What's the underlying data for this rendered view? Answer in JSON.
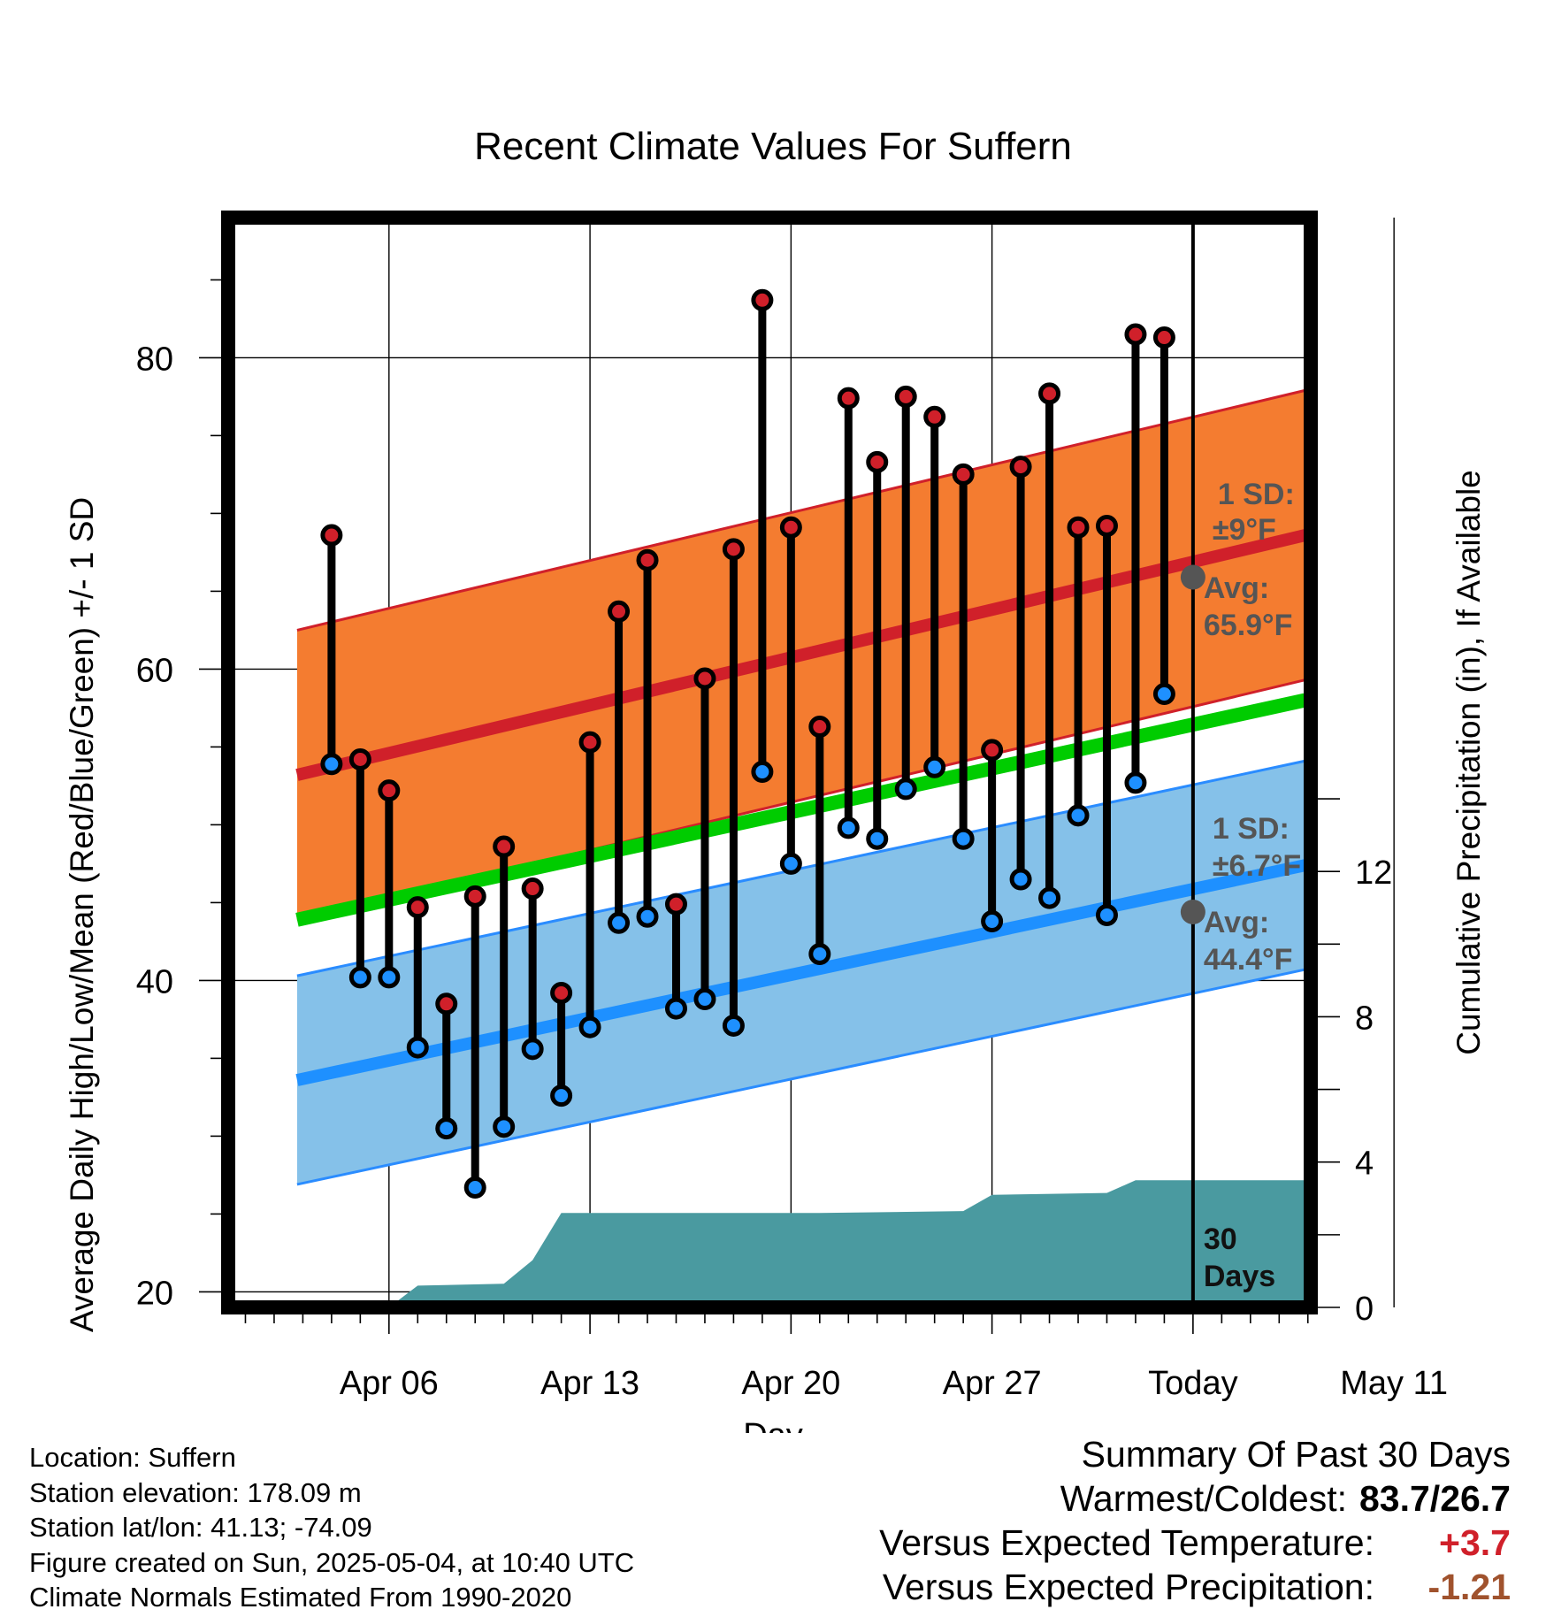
{
  "chart_data": {
    "type": "line",
    "title": "Recent Climate Values For Suffern",
    "xlabel": "Day",
    "ylabel": "Average Daily High/Low/Mean (Red/Blue/Green) +/- 1 SD",
    "y2label": "Cumulative Precipitation (in), If Available",
    "ylim": [
      19,
      89
    ],
    "y2lim": [
      0,
      30
    ],
    "y_ticks": [
      20,
      40,
      60,
      80
    ],
    "y2_ticks": [
      0,
      4,
      8,
      12
    ],
    "x_range_days": [
      -33.6,
      4.1
    ],
    "x_ticks": [
      {
        "day": -28,
        "label": "Apr 06"
      },
      {
        "day": -21,
        "label": "Apr 13"
      },
      {
        "day": -14,
        "label": "Apr 20"
      },
      {
        "day": -7,
        "label": "Apr 27"
      },
      {
        "day": 0,
        "label": "Today"
      },
      {
        "day": 7,
        "label": "May 11"
      }
    ],
    "grid": true,
    "series": [
      {
        "name": "High",
        "color": "#d0202a",
        "days": [
          -30,
          -29,
          -28,
          -27,
          -26,
          -25,
          -24,
          -23,
          -22,
          -21,
          -20,
          -19,
          -18,
          -17,
          -16,
          -15,
          -14,
          -13,
          -12,
          -11,
          -10,
          -9,
          -8,
          -7,
          -6,
          -5,
          -4,
          -3,
          -2,
          -1
        ],
        "values": [
          68.6,
          54.2,
          52.2,
          44.7,
          38.5,
          45.4,
          48.6,
          45.9,
          39.2,
          55.3,
          63.7,
          67.0,
          44.9,
          59.4,
          67.7,
          83.7,
          69.1,
          56.3,
          77.4,
          73.3,
          77.5,
          76.2,
          72.5,
          54.8,
          73.0,
          77.7,
          69.1,
          69.2,
          81.5,
          81.3
        ]
      },
      {
        "name": "Low",
        "color": "#1e90ff",
        "days": [
          -30,
          -29,
          -28,
          -27,
          -26,
          -25,
          -24,
          -23,
          -22,
          -21,
          -20,
          -19,
          -18,
          -17,
          -16,
          -15,
          -14,
          -13,
          -12,
          -11,
          -10,
          -9,
          -8,
          -7,
          -6,
          -5,
          -4,
          -3,
          -2,
          -1
        ],
        "values": [
          53.9,
          40.2,
          40.2,
          35.7,
          30.5,
          26.7,
          30.6,
          35.6,
          32.6,
          37.0,
          43.7,
          44.1,
          38.2,
          38.8,
          37.1,
          53.4,
          47.5,
          41.7,
          49.8,
          49.1,
          52.3,
          53.7,
          49.1,
          43.8,
          46.5,
          45.3,
          50.6,
          44.2,
          52.7,
          58.4
        ]
      },
      {
        "name": "Mean normal",
        "color": "#00cc00",
        "days": [
          -31.2,
          3.9
        ],
        "values": [
          43.9,
          58.0
        ]
      }
    ],
    "normal_bands": {
      "high": {
        "days": [
          -31.2,
          3.9
        ],
        "mean": [
          53.2,
          68.6
        ],
        "sd": 9.3
      },
      "low": {
        "days": [
          -31.2,
          3.9
        ],
        "mean": [
          33.6,
          47.4
        ],
        "sd": 6.7
      }
    },
    "precipitation": {
      "color": "#4a9aa0",
      "days": [
        -28,
        -27,
        -24,
        -23,
        -22,
        -13,
        -8,
        -7,
        -3,
        -2,
        -1,
        3.9
      ],
      "values": [
        0,
        0.6,
        0.65,
        1.3,
        2.6,
        2.6,
        2.65,
        3.1,
        3.15,
        3.5,
        3.5,
        3.5
      ]
    },
    "today_marker": {
      "day": 0,
      "label_line1": "30",
      "label_line2": "Days"
    },
    "annotations": {
      "high_sd_line1": "1 SD:",
      "high_sd_line2": "±9°F",
      "high_avg_line1": "Avg:",
      "high_avg_line2": "65.9°F",
      "high_avg_value": 65.9,
      "low_sd_line1": "1 SD:",
      "low_sd_line2": "±6.7°F",
      "low_avg_line1": "Avg:",
      "low_avg_line2": "44.4°F",
      "low_avg_value": 44.4
    }
  },
  "info": {
    "location": "Location: Suffern",
    "elevation": "Station elevation: 178.09 m",
    "latlon": "Station lat/lon: 41.13; -74.09",
    "created": "Figure created on Sun, 2025-05-04, at 10:40 UTC",
    "normals": "Climate Normals Estimated From 1990-2020"
  },
  "summary": {
    "title": "Summary Of Past 30 Days",
    "warmest_label": "Warmest/Coldest:",
    "warmest_value": "83.7/26.7",
    "temp_label": "Versus Expected Temperature:",
    "temp_value": "+3.7",
    "temp_color": "#d0202a",
    "precip_label": "Versus Expected Precipitation:",
    "precip_value": "-1.21",
    "precip_color": "#a0522d"
  }
}
